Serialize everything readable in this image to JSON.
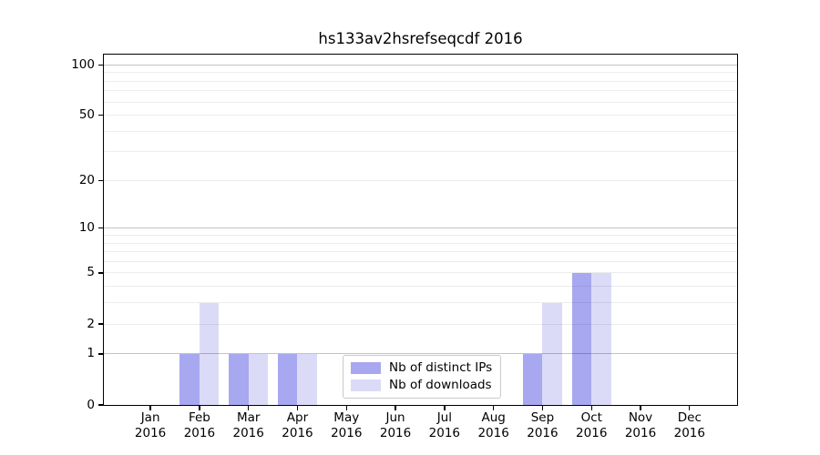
{
  "chart_data": {
    "type": "bar",
    "title": "hs133av2hsrefseqcdf 2016",
    "categories": [
      "Jan",
      "Feb",
      "Mar",
      "Apr",
      "May",
      "Jun",
      "Jul",
      "Aug",
      "Sep",
      "Oct",
      "Nov",
      "Dec"
    ],
    "category_year": "2016",
    "series": [
      {
        "name": "Nb of distinct IPs",
        "color": "#a8a8f0",
        "values": [
          0,
          1,
          1,
          1,
          0,
          0,
          0,
          0,
          1,
          5,
          0,
          0
        ]
      },
      {
        "name": "Nb of downloads",
        "color": "#dbdbf8",
        "values": [
          0,
          3,
          1,
          1,
          0,
          0,
          0,
          0,
          3,
          5,
          0,
          0
        ]
      }
    ],
    "xlabel": "",
    "ylabel": "",
    "yscale": "log1p",
    "ytick_labels": [
      0,
      1,
      2,
      5,
      10,
      20,
      50,
      100
    ],
    "ylim": [
      0,
      115
    ],
    "xlim": [
      0.05,
      12.97
    ],
    "grid_major": [
      1,
      10,
      100
    ],
    "grid_minor": [
      2,
      3,
      4,
      5,
      6,
      7,
      8,
      9,
      20,
      30,
      40,
      50,
      60,
      70,
      80,
      90
    ],
    "bar_group_width": 0.8,
    "legend": {
      "position": "lower center",
      "border_color": "#c9c9c9"
    }
  }
}
